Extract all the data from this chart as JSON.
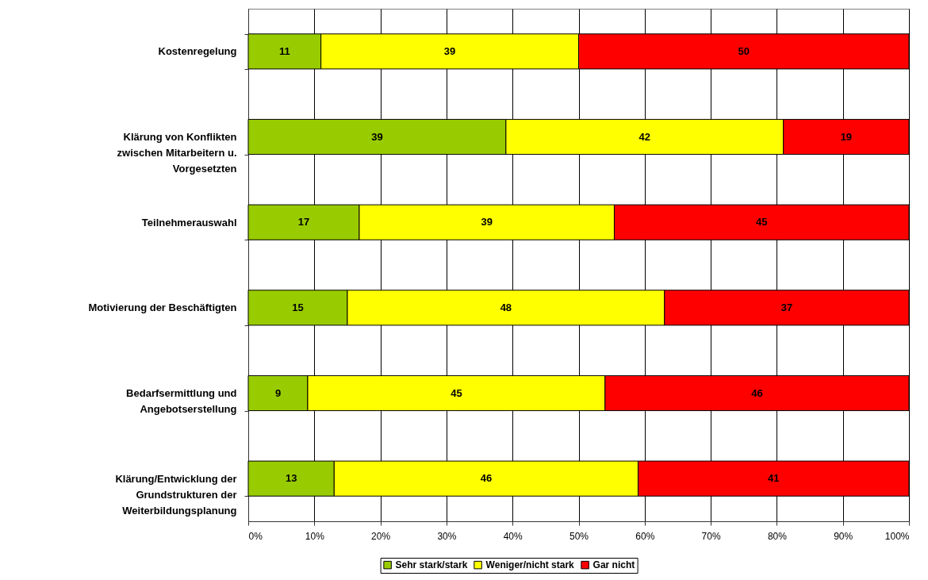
{
  "chart_data": {
    "type": "bar",
    "orientation": "horizontal",
    "stacked": true,
    "categories": [
      "Kostenregelung",
      "Klärung von Konflikten zwischen Mitarbeitern u. Vorgesetzten",
      "Teilnehmerauswahl",
      "Motivierung der Beschäftigten",
      "Bedarfsermittlung und Angebotserstellung",
      "Klärung/Entwicklung der Grundstrukturen der Weiterbildungsplanung"
    ],
    "series": [
      {
        "name": "Sehr stark/stark",
        "color": "#99cc00",
        "values": [
          11,
          39,
          16.8,
          15,
          9,
          13
        ],
        "value_labels": [
          "11",
          "39",
          "17",
          "15",
          "9",
          "13"
        ]
      },
      {
        "name": "Weniger/nicht stark",
        "color": "#ffff00",
        "values": [
          39,
          42,
          38.6,
          48,
          45,
          46
        ],
        "value_labels": [
          "39",
          "42",
          "39",
          "48",
          "45",
          "46"
        ]
      },
      {
        "name": "Gar nicht",
        "color": "#ff0000",
        "values": [
          50,
          19,
          44.6,
          37,
          46,
          41
        ],
        "value_labels": [
          "50",
          "19",
          "45",
          "37",
          "46",
          "41"
        ]
      }
    ],
    "xlim": [
      0,
      100
    ],
    "xticks": [
      {
        "value": 0,
        "label": "0%"
      },
      {
        "value": 10,
        "label": "10%"
      },
      {
        "value": 20,
        "label": "20%"
      },
      {
        "value": 30,
        "label": "30%"
      },
      {
        "value": 40,
        "label": "40%"
      },
      {
        "value": 50,
        "label": "50%"
      },
      {
        "value": 60,
        "label": "60%"
      },
      {
        "value": 70,
        "label": "70%"
      },
      {
        "value": 80,
        "label": "80%"
      },
      {
        "value": 90,
        "label": "90%"
      },
      {
        "value": 100,
        "label": "100%"
      }
    ],
    "grid": "x",
    "legend": "bottom"
  }
}
